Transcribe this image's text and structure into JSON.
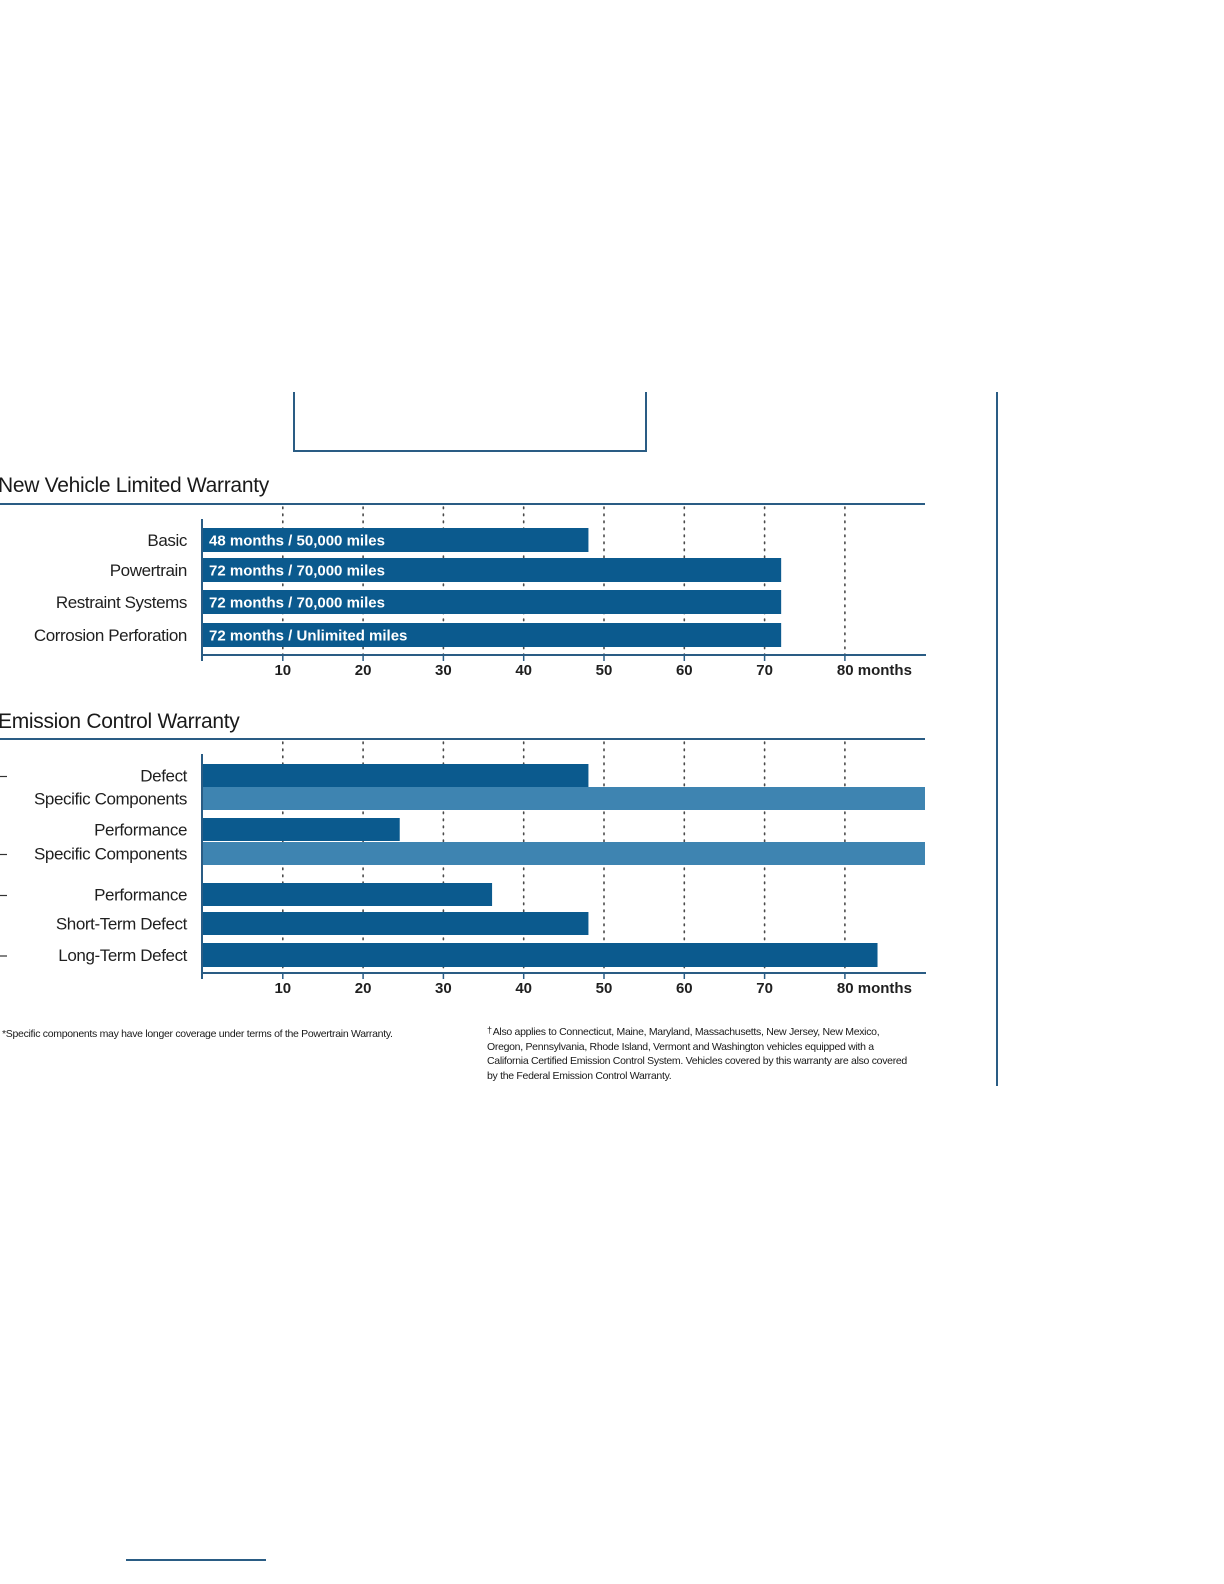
{
  "chart_data": [
    {
      "type": "bar",
      "title": "New Vehicle Limited Warranty",
      "orientation": "horizontal",
      "xlabel": "months",
      "xlim": [
        0,
        90
      ],
      "ticks": [
        10,
        20,
        30,
        40,
        50,
        60,
        70,
        80
      ],
      "tick_labels": [
        "10",
        "20",
        "30",
        "40",
        "50",
        "60",
        "70",
        "80 months"
      ],
      "grid": "vertical dotted",
      "bars": [
        {
          "category": "Basic",
          "value": 48,
          "label": "48 months / 50,000 miles",
          "color": "#0b5a8e"
        },
        {
          "category": "Powertrain",
          "value": 72,
          "label": "72 months / 70,000 miles",
          "color": "#0b5a8e"
        },
        {
          "category": "Restraint Systems",
          "value": 72,
          "label": "72 months / 70,000 miles",
          "color": "#0b5a8e"
        },
        {
          "category": "Corrosion Perforation",
          "value": 72,
          "label": "72 months / Unlimited miles",
          "color": "#0b5a8e"
        }
      ]
    },
    {
      "type": "bar",
      "title": "Emission Control Warranty",
      "orientation": "horizontal",
      "xlabel": "months",
      "xlim": [
        0,
        90
      ],
      "ticks": [
        10,
        20,
        30,
        40,
        50,
        60,
        70,
        80
      ],
      "tick_labels": [
        "10",
        "20",
        "30",
        "40",
        "50",
        "60",
        "70",
        "80 months"
      ],
      "grid": "vertical dotted",
      "bars": [
        {
          "category": "Defect",
          "value": 48,
          "color": "#0b5a8e"
        },
        {
          "category": "Specific Components",
          "value": 90,
          "color": "#3e84b1"
        },
        {
          "category": "Performance",
          "value": 24.5,
          "color": "#0b5a8e"
        },
        {
          "category": "Specific Components",
          "value": 90,
          "color": "#3e84b1"
        },
        {
          "category": "Performance",
          "value": 36,
          "color": "#0b5a8e"
        },
        {
          "category": "Short-Term Defect",
          "value": 48,
          "color": "#0b5a8e"
        },
        {
          "category": "Long-Term Defect",
          "value": 84,
          "color": "#0b5a8e"
        }
      ]
    }
  ],
  "footnotes": {
    "left": "*Specific components may have longer coverage under terms of the Powertrain Warranty.",
    "right_mark": "†",
    "right": "Also applies to Connecticut, Maine, Maryland, Massachusetts, New Jersey, New Mexico, Oregon, Pennsylvania, Rhode Island, Vermont and Washington vehicles equipped with a California Certified Emission Control System. Vehicles covered by this warranty are also covered by the Federal Emission Control Warranty."
  }
}
